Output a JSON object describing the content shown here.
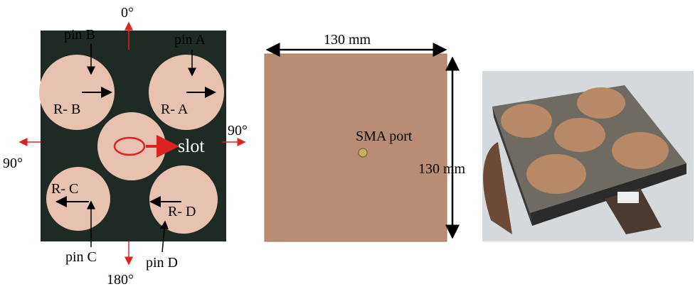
{
  "labels": {
    "top_angle": "0°",
    "pin_b": "pin B",
    "pin_a": "pin A",
    "r_b": "R- B",
    "r_a": "R- A",
    "slot": "slot",
    "right_angle": "90°",
    "left_angle": "90°",
    "r_c": "R- C",
    "r_d": "R- D",
    "pin_c": "pin C",
    "pin_d": "pin D",
    "bottom_angle": "180°",
    "width_dim": "130 mm",
    "sma_port": "SMA port",
    "height_dim": "130 mm"
  }
}
